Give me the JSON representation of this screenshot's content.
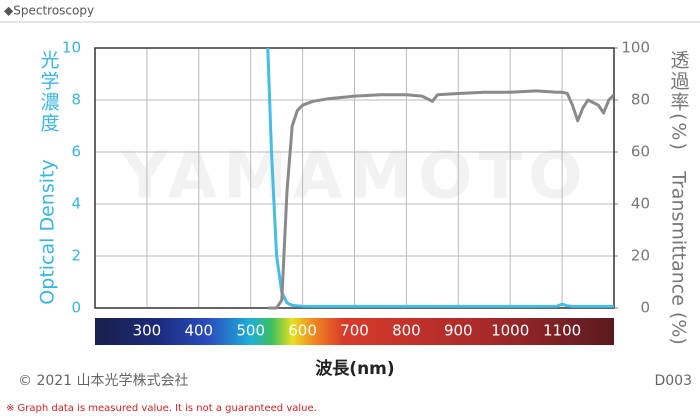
{
  "header": "◆Spectroscopy",
  "chart_data": {
    "type": "line",
    "watermark": "YAMAMOTO",
    "xlabel": "波長(nm)",
    "ylabel": "Optical Density",
    "ylabel_ja": "光学濃度",
    "y2label": "Transmittance (%)",
    "y2label_ja": "透過率(%)",
    "xlim": [
      200,
      1200
    ],
    "xticks": [
      300,
      400,
      500,
      600,
      700,
      800,
      900,
      1000,
      1100
    ],
    "ylim": [
      0,
      10
    ],
    "yticks": [
      0,
      2,
      4,
      6,
      8,
      10
    ],
    "y2lim": [
      0,
      100
    ],
    "y2ticks": [
      0,
      20,
      40,
      60,
      80,
      100
    ],
    "grid": true,
    "x": [
      533,
      540,
      550,
      560,
      570,
      580,
      590,
      600,
      620,
      650,
      700,
      750,
      800,
      830,
      850,
      860,
      900,
      950,
      1000,
      1050,
      1090,
      1100,
      1110,
      1120,
      1130,
      1140,
      1150,
      1160,
      1170,
      1180,
      1190,
      1200
    ],
    "series": [
      {
        "color": "#45bde6",
        "values": [
          10,
          6,
          2,
          0.6,
          0.2,
          0.1,
          0.08,
          0.07,
          0.06,
          0.06,
          0.06,
          0.06,
          0.06,
          0.06,
          0.06,
          0.06,
          0.06,
          0.06,
          0.06,
          0.06,
          0.07,
          0.15,
          0.08,
          0.06,
          0.06,
          0.06,
          0.06,
          0.06,
          0.06,
          0.06,
          0.06,
          0.06
        ]
      },
      {
        "color": "#8a8a8a",
        "axis": "y2",
        "values": [
          0,
          0,
          0,
          3,
          45,
          70,
          76,
          78,
          79.5,
          80.5,
          81.5,
          82,
          82,
          81.5,
          79.5,
          82,
          82.5,
          83,
          83,
          83.5,
          83,
          83,
          82.5,
          78,
          72,
          77,
          80,
          79,
          78,
          75,
          80,
          82
        ]
      }
    ]
  },
  "footer": {
    "copyright": "© 2021 山本光学株式会社",
    "code": "D003",
    "note": "※ Graph data is measured value. It is not a guaranteed value."
  }
}
